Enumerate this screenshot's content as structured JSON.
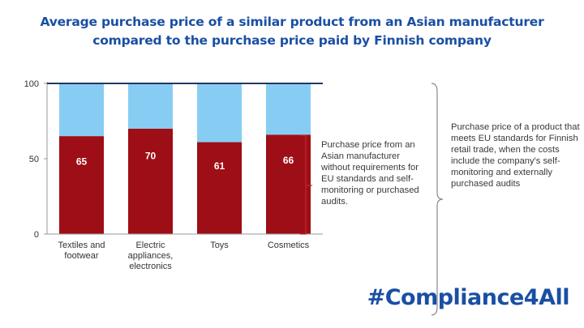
{
  "title": {
    "line1": "Average purchase price of a similar product from an Asian manufacturer",
    "line2": "compared to the purchase price paid by Finnish company"
  },
  "chart_data": {
    "type": "bar",
    "stacked": true,
    "categories": [
      "Textiles and footwear",
      "Electric appliances, electronics",
      "Toys",
      "Cosmetics"
    ],
    "category_lines": [
      [
        "Textiles and",
        "footwear"
      ],
      [
        "Electric",
        "appliances,",
        "electronics"
      ],
      [
        "Toys"
      ],
      [
        "Cosmetics"
      ]
    ],
    "series": [
      {
        "values": [
          65,
          70,
          61,
          66
        ],
        "color": "#9e0e16",
        "labels": [
          "65",
          "70",
          "61",
          "66"
        ]
      },
      {
        "values": [
          35,
          30,
          39,
          34
        ],
        "color": "#87cdf3"
      }
    ],
    "ylim": [
      0,
      100
    ],
    "yticks": [
      "0",
      "50",
      "100"
    ],
    "xlabel": "",
    "ylabel": "",
    "grid": false,
    "legend": "none",
    "top_line_color": "#1f3864"
  },
  "annotations": {
    "left": "Purchase price from an Asian manufacturer without requirements for EU standards and self-monitoring or purchased audits.",
    "right": "Purchase price of a product that meets EU standards for Finnish retail trade, when the costs include the company's self-monitoring and externally purchased audits"
  },
  "hashtag": "#Compliance4All"
}
